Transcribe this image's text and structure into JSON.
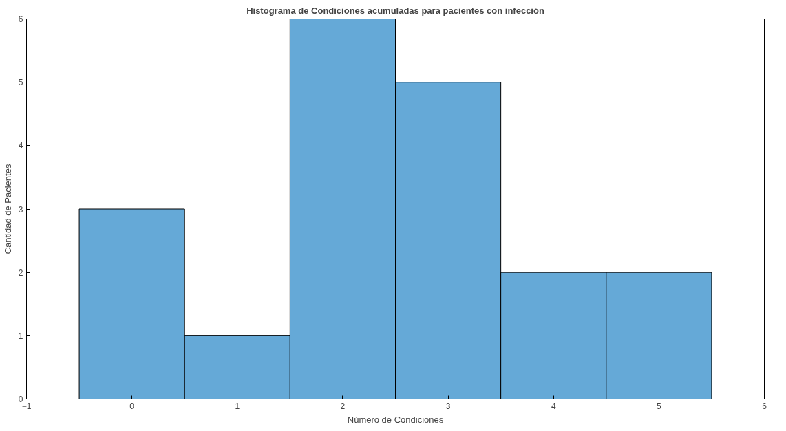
{
  "chart_data": {
    "type": "histogram",
    "title": "Histograma de Condiciones acumuladas para pacientes con infección",
    "xlabel": "Número de Condiciones",
    "ylabel": "Cantidad de Pacientes",
    "bins": [
      -0.5,
      0.5,
      1.5,
      2.5,
      3.5,
      4.5,
      5.5
    ],
    "values": [
      3,
      1,
      6,
      5,
      2,
      2
    ],
    "color": "#65a9d7",
    "xlim": [
      -1,
      6
    ],
    "xticks": [
      -1,
      0,
      1,
      2,
      3,
      4,
      5,
      6
    ],
    "ylim": [
      0,
      6
    ],
    "yticks": [
      0,
      1,
      2,
      3,
      4,
      5,
      6
    ],
    "grid": false
  }
}
